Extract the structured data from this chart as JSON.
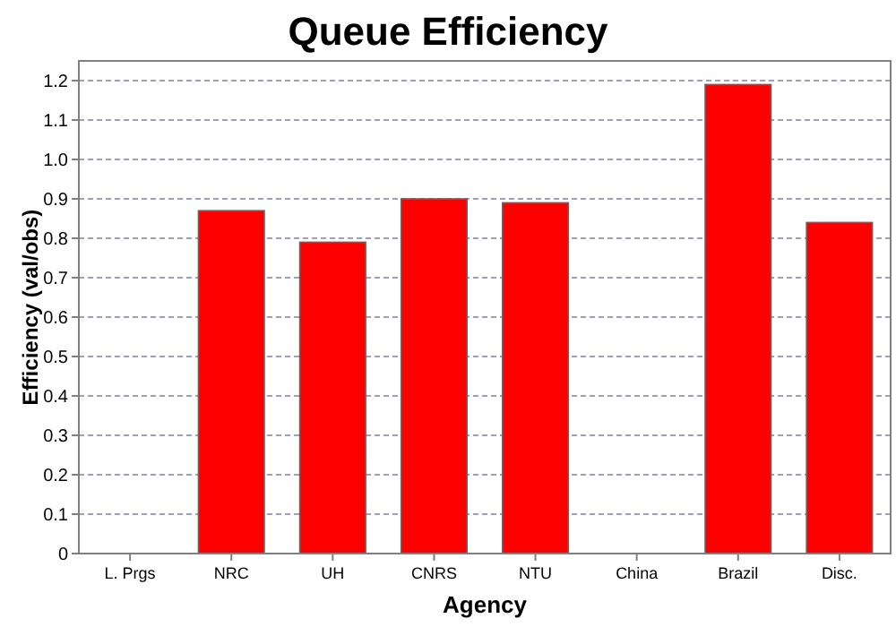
{
  "chart_data": {
    "type": "bar",
    "title": "Queue Efficiency",
    "xlabel": "Agency",
    "ylabel": "Efficiency (val/obs)",
    "categories": [
      "L. Prgs",
      "NRC",
      "UH",
      "CNRS",
      "NTU",
      "China",
      "Brazil",
      "Disc."
    ],
    "values": [
      0,
      0.87,
      0.79,
      0.9,
      0.89,
      0,
      1.19,
      0.84
    ],
    "color": "#ff0000",
    "ylim": [
      0,
      1.25
    ],
    "yticks": [
      0,
      {
        "value": 0.1,
        "label": "0.1"
      },
      {
        "value": 0.2,
        "label": "0.2"
      },
      {
        "value": 0.3,
        "label": "0.3"
      },
      {
        "value": 0.4,
        "label": "0.4"
      },
      {
        "value": 0.5,
        "label": "0.5"
      },
      {
        "value": 0.6,
        "label": "0.6"
      },
      {
        "value": 0.7,
        "label": "0.7"
      },
      {
        "value": 0.8,
        "label": "0.8"
      },
      {
        "value": 0.9,
        "label": "0.9"
      },
      {
        "value": 1,
        "label": "1.0"
      },
      {
        "value": 1.1,
        "label": "1.1"
      },
      {
        "value": 1.2,
        "label": "1.2"
      }
    ],
    "grid": "y"
  }
}
